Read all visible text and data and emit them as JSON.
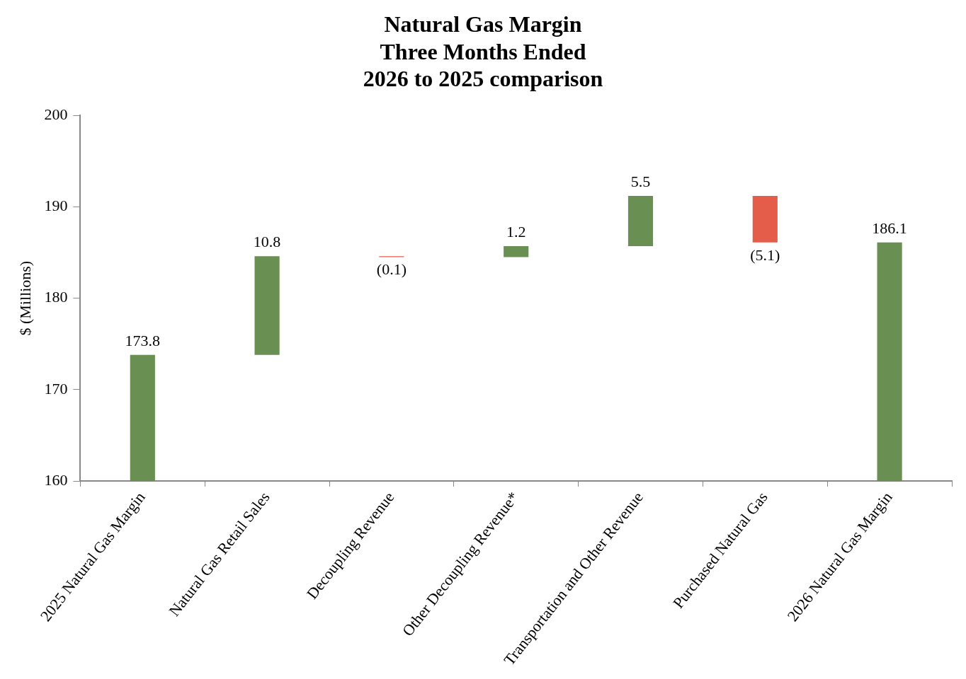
{
  "chart_data": {
    "type": "bar",
    "title": "Natural Gas Margin\nThree Months Ended\n2026 to 2025 comparison",
    "ylabel": "$ (Millions)",
    "categories": [
      "2025 Natural Gas Margin",
      "Natural Gas Retail Sales",
      "Decoupling Revenue",
      "Other Decoupling Revenue*",
      "Transportation and Other Revenue",
      "Purchased Natural Gas",
      "2026 Natural Gas Margin"
    ],
    "values": [
      173.8,
      10.8,
      -0.1,
      1.2,
      5.5,
      -5.1,
      186.1
    ],
    "base": [
      null,
      173.8,
      184.6,
      184.5,
      185.7,
      191.2,
      null
    ],
    "colors": [
      "#6a8f53",
      "#6a8f53",
      "#e35d4a",
      "#6a8f53",
      "#6a8f53",
      "#e35d4a",
      "#6a8f53"
    ],
    "value_labels": [
      "173.8",
      "10.8",
      "(0.1)",
      "1.2",
      "5.5",
      "(5.1)",
      "186.1"
    ],
    "ylim": [
      160,
      200
    ],
    "yticks": [
      160,
      170,
      180,
      190,
      200
    ],
    "grid": false,
    "legend": false
  }
}
